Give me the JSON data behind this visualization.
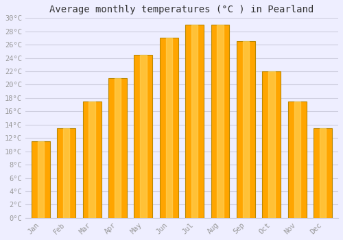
{
  "title": "Average monthly temperatures (°C ) in Pearland",
  "months": [
    "Jan",
    "Feb",
    "Mar",
    "Apr",
    "May",
    "Jun",
    "Jul",
    "Aug",
    "Sep",
    "Oct",
    "Nov",
    "Dec"
  ],
  "values": [
    11.5,
    13.5,
    17.5,
    21.0,
    24.5,
    27.0,
    29.0,
    29.0,
    26.5,
    22.0,
    17.5,
    13.5
  ],
  "bar_color_light": "#FFD966",
  "bar_color_main": "#FFA500",
  "bar_color_dark": "#CC8800",
  "bar_edge_color": "#BB8800",
  "ylim": [
    0,
    30
  ],
  "background_color": "#EEEEFF",
  "plot_bg_color": "#EEEEFF",
  "grid_color": "#CCCCDD",
  "title_fontsize": 10,
  "tick_label_color": "#999999",
  "axis_label_fontsize": 8,
  "font_family": "monospace"
}
